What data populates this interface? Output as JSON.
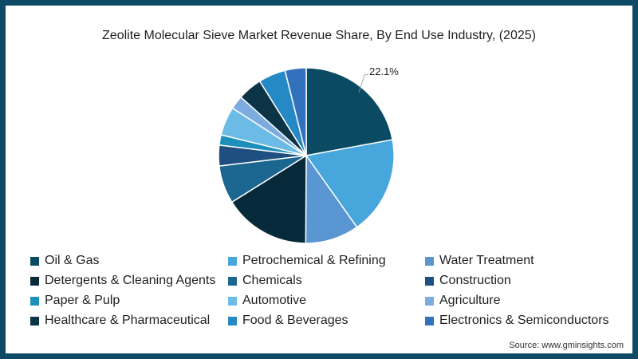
{
  "title": "Zeolite Molecular Sieve Market Revenue Share, By End Use Industry, (2025)",
  "source": "Source: www.gminsights.com",
  "colors": {
    "border": "#0e4a63",
    "background": "#ffffff"
  },
  "chart_data": {
    "type": "pie",
    "title": "Zeolite Molecular Sieve Market Revenue Share, By End Use Industry, (2025)",
    "start_angle": "12 o'clock, clockwise",
    "legend_position": "bottom",
    "categories": [
      "Oil & Gas",
      "Petrochemical & Refining",
      "Water Treatment",
      "Detergents & Cleaning Agents",
      "Chemicals",
      "Construction",
      "Paper & Pulp",
      "Automotive",
      "Agriculture",
      "Healthcare & Pharmaceutical",
      "Food & Beverages",
      "Electronics & Semiconductors"
    ],
    "values": [
      22.1,
      18.1,
      9.9,
      16.0,
      7.0,
      3.8,
      1.9,
      5.3,
      2.5,
      4.5,
      5.0,
      3.9
    ],
    "colors": [
      "#0a4a63",
      "#47a6dc",
      "#5a96d2",
      "#072a3b",
      "#1c6792",
      "#1f4f80",
      "#1e8fba",
      "#6bbbe6",
      "#7cabdf",
      "#0b3446",
      "#2589c6",
      "#3272bd"
    ],
    "annotations": [
      {
        "category": "Oil & Gas",
        "label": "22.1%"
      }
    ]
  }
}
